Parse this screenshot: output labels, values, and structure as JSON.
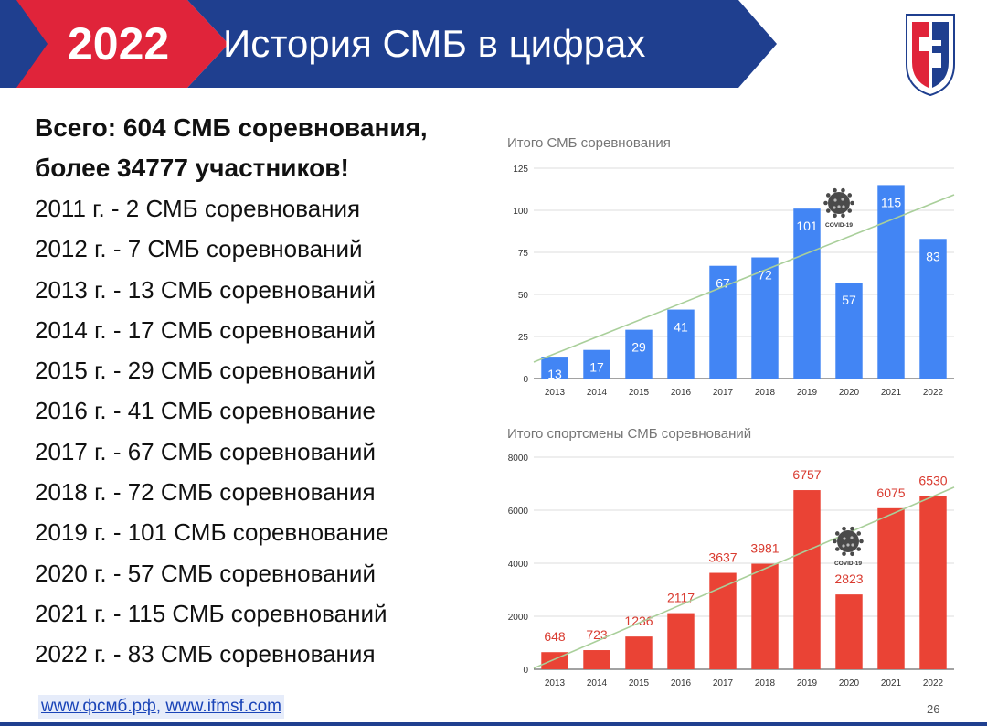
{
  "header": {
    "year": "2022",
    "title": "История СМБ в цифрах",
    "colors": {
      "red": "#e0243a",
      "blue": "#1f3f8f"
    }
  },
  "summary": {
    "line1": "Всего: 604 СМБ соревнования,",
    "line2": "более 34777 участников!"
  },
  "yearly": [
    "2011 г. - 2 СМБ соревнования",
    "2012 г. - 7 СМБ соревнований",
    "2013 г. - 13 СМБ соревнований",
    "2014 г. - 17 СМБ соревнований",
    "2015 г. - 29 СМБ соревнований",
    "2016 г. - 41 СМБ соревнование",
    "2017 г. - 67 СМБ соревнований",
    "2018 г. - 72 СМБ соревнования",
    "2019 г. - 101 СМБ соревнование",
    "2020 г. - 57 СМБ соревнований",
    "2021 г. - 115 СМБ соревнований",
    "2022 г. - 83 СМБ соревнования"
  ],
  "links": {
    "link1": "www.фсмб.рф",
    "sep": ",",
    "link2": "www.ifmsf.com"
  },
  "page_number": "26",
  "chart_data": [
    {
      "type": "bar",
      "title": "Итого СМБ соревнования",
      "categories": [
        "2013",
        "2014",
        "2015",
        "2016",
        "2017",
        "2018",
        "2019",
        "2020",
        "2021",
        "2022"
      ],
      "values": [
        13,
        17,
        29,
        41,
        67,
        72,
        101,
        57,
        115,
        83
      ],
      "ylim": [
        0,
        125
      ],
      "yticks": [
        0,
        25,
        50,
        75,
        100,
        125
      ],
      "bar_color": "#4285f4",
      "label_color": "#ffffff",
      "trendline": {
        "color": "#a9cf9a"
      },
      "annotation": {
        "label": "COVID-19",
        "icon": "virus-icon"
      },
      "grid": true
    },
    {
      "type": "bar",
      "title": "Итого спортсмены СМБ соревнований",
      "categories": [
        "2013",
        "2014",
        "2015",
        "2016",
        "2017",
        "2018",
        "2019",
        "2020",
        "2021",
        "2022"
      ],
      "values": [
        648,
        723,
        1236,
        2117,
        3637,
        3981,
        6757,
        2823,
        6075,
        6530
      ],
      "ylim": [
        0,
        8000
      ],
      "yticks": [
        0,
        2000,
        4000,
        6000,
        8000
      ],
      "bar_color": "#ea4335",
      "label_color": "#d93a2f",
      "trendline": {
        "color": "#a9cf9a"
      },
      "annotation": {
        "label": "COVID-19",
        "icon": "virus-icon"
      },
      "grid": true
    }
  ]
}
